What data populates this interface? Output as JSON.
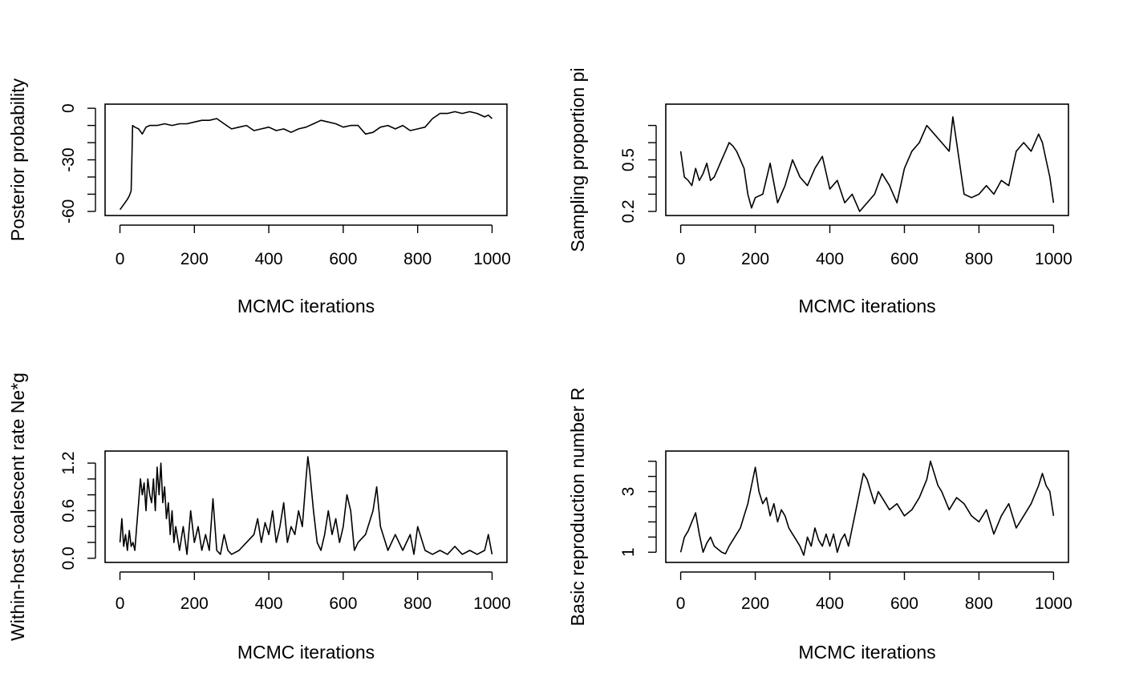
{
  "chart_data": [
    {
      "type": "line",
      "title": "",
      "xlabel": "MCMC iterations",
      "ylabel": "Posterior probability",
      "xlim": [
        0,
        1000
      ],
      "ylim": [
        -60,
        0
      ],
      "xticks": [
        0,
        200,
        400,
        600,
        800,
        1000
      ],
      "yticks_labeled": [
        0,
        -30,
        -60
      ],
      "yticks_minor": [
        -10,
        -20,
        -40,
        -50
      ],
      "grid": false,
      "legend": "none",
      "line_color": "#000000",
      "series": [
        {
          "x": [
            0,
            10,
            20,
            25,
            30,
            32,
            34,
            40,
            50,
            60,
            70,
            80,
            100,
            120,
            140,
            160,
            180,
            200,
            220,
            240,
            260,
            280,
            300,
            320,
            340,
            360,
            380,
            400,
            420,
            440,
            460,
            480,
            500,
            520,
            540,
            560,
            580,
            600,
            620,
            640,
            660,
            680,
            700,
            720,
            740,
            760,
            780,
            800,
            820,
            840,
            860,
            880,
            900,
            920,
            940,
            960,
            980,
            990,
            1000
          ],
          "values": [
            -59,
            -56,
            -53,
            -51,
            -48,
            -30,
            -10,
            -11,
            -12,
            -15,
            -11,
            -10,
            -10,
            -9,
            -10,
            -9,
            -9,
            -8,
            -7,
            -7,
            -6,
            -9,
            -12,
            -11,
            -10,
            -13,
            -12,
            -11,
            -13,
            -12,
            -14,
            -12,
            -11,
            -9,
            -7,
            -8,
            -9,
            -11,
            -10,
            -10,
            -15,
            -14,
            -11,
            -10,
            -12,
            -10,
            -13,
            -12,
            -11,
            -6,
            -3,
            -3,
            -2,
            -3,
            -2,
            -3,
            -5,
            -4,
            -6
          ]
        }
      ]
    },
    {
      "type": "line",
      "title": "",
      "xlabel": "MCMC iterations",
      "ylabel": "Sampling proportion pi",
      "xlim": [
        0,
        1000
      ],
      "ylim": [
        0.2,
        0.8
      ],
      "xticks": [
        0,
        200,
        400,
        600,
        800,
        1000
      ],
      "yticks_labeled": [
        0.2,
        0.5
      ],
      "yticks_minor": [
        0.3,
        0.4,
        0.6,
        0.7
      ],
      "grid": false,
      "legend": "none",
      "line_color": "#000000",
      "series": [
        {
          "x": [
            0,
            10,
            20,
            30,
            40,
            50,
            60,
            70,
            80,
            90,
            100,
            110,
            120,
            130,
            140,
            150,
            160,
            170,
            180,
            190,
            200,
            220,
            240,
            260,
            280,
            300,
            320,
            340,
            360,
            380,
            400,
            420,
            440,
            460,
            480,
            500,
            520,
            540,
            560,
            580,
            600,
            620,
            640,
            660,
            680,
            700,
            720,
            730,
            740,
            760,
            780,
            800,
            820,
            840,
            860,
            880,
            900,
            920,
            940,
            960,
            970,
            980,
            990,
            1000
          ],
          "values": [
            0.55,
            0.4,
            0.38,
            0.35,
            0.45,
            0.38,
            0.42,
            0.48,
            0.38,
            0.4,
            0.45,
            0.5,
            0.55,
            0.6,
            0.58,
            0.55,
            0.5,
            0.45,
            0.3,
            0.22,
            0.28,
            0.3,
            0.48,
            0.25,
            0.35,
            0.5,
            0.4,
            0.35,
            0.45,
            0.52,
            0.33,
            0.38,
            0.25,
            0.3,
            0.2,
            0.25,
            0.3,
            0.42,
            0.35,
            0.25,
            0.45,
            0.55,
            0.6,
            0.7,
            0.65,
            0.6,
            0.55,
            0.75,
            0.6,
            0.3,
            0.28,
            0.3,
            0.35,
            0.3,
            0.38,
            0.35,
            0.55,
            0.6,
            0.55,
            0.65,
            0.6,
            0.5,
            0.4,
            0.25
          ]
        }
      ]
    },
    {
      "type": "line",
      "title": "",
      "xlabel": "MCMC iterations",
      "ylabel": "Within-host coalescent rate Ne*g",
      "xlim": [
        0,
        1000
      ],
      "ylim": [
        0,
        1.3
      ],
      "xticks": [
        0,
        200,
        400,
        600,
        800,
        1000
      ],
      "yticks_labeled": [
        0.0,
        0.6,
        1.2
      ],
      "yticks_minor": [
        0.2,
        0.4,
        0.8,
        1.0
      ],
      "grid": false,
      "legend": "none",
      "line_color": "#000000",
      "series": [
        {
          "x": [
            0,
            5,
            10,
            15,
            20,
            25,
            30,
            35,
            40,
            45,
            50,
            55,
            60,
            65,
            70,
            75,
            80,
            85,
            90,
            95,
            100,
            105,
            110,
            115,
            120,
            125,
            130,
            135,
            140,
            145,
            150,
            160,
            170,
            180,
            190,
            200,
            210,
            220,
            230,
            240,
            250,
            260,
            270,
            280,
            290,
            300,
            320,
            340,
            360,
            370,
            380,
            390,
            400,
            410,
            420,
            430,
            440,
            450,
            460,
            470,
            480,
            490,
            500,
            505,
            510,
            520,
            530,
            540,
            550,
            560,
            570,
            580,
            590,
            600,
            610,
            620,
            630,
            640,
            660,
            680,
            690,
            700,
            720,
            740,
            760,
            780,
            790,
            800,
            820,
            840,
            860,
            880,
            900,
            920,
            940,
            960,
            980,
            990,
            1000
          ],
          "values": [
            0.2,
            0.5,
            0.15,
            0.3,
            0.1,
            0.35,
            0.15,
            0.2,
            0.1,
            0.4,
            0.7,
            1.0,
            0.8,
            0.95,
            0.6,
            1.0,
            0.8,
            0.7,
            1.0,
            0.6,
            1.15,
            0.8,
            1.2,
            0.7,
            0.9,
            0.5,
            0.7,
            0.3,
            0.6,
            0.2,
            0.4,
            0.1,
            0.4,
            0.05,
            0.6,
            0.2,
            0.4,
            0.1,
            0.3,
            0.1,
            0.75,
            0.1,
            0.05,
            0.3,
            0.1,
            0.05,
            0.1,
            0.2,
            0.3,
            0.5,
            0.2,
            0.45,
            0.3,
            0.6,
            0.2,
            0.4,
            0.7,
            0.2,
            0.4,
            0.3,
            0.6,
            0.4,
            1.0,
            1.28,
            1.1,
            0.6,
            0.2,
            0.1,
            0.3,
            0.6,
            0.3,
            0.5,
            0.2,
            0.4,
            0.8,
            0.6,
            0.1,
            0.2,
            0.3,
            0.6,
            0.9,
            0.4,
            0.1,
            0.3,
            0.1,
            0.3,
            0.05,
            0.4,
            0.1,
            0.05,
            0.1,
            0.05,
            0.15,
            0.05,
            0.1,
            0.05,
            0.1,
            0.3,
            0.05
          ]
        }
      ]
    },
    {
      "type": "line",
      "title": "",
      "xlabel": "MCMC iterations",
      "ylabel": "Basic reproduction number R",
      "xlim": [
        0,
        1000
      ],
      "ylim": [
        0.8,
        4.2
      ],
      "xticks": [
        0,
        200,
        400,
        600,
        800,
        1000
      ],
      "yticks_labeled": [
        1.0,
        3.0
      ],
      "yticks_minor": [
        1.5,
        2.0,
        2.5,
        3.5,
        4.0
      ],
      "grid": false,
      "legend": "none",
      "line_color": "#000000",
      "series": [
        {
          "x": [
            0,
            10,
            20,
            30,
            40,
            50,
            60,
            70,
            80,
            90,
            100,
            110,
            120,
            130,
            140,
            150,
            160,
            170,
            180,
            190,
            200,
            210,
            220,
            230,
            240,
            250,
            260,
            270,
            280,
            290,
            300,
            310,
            320,
            330,
            340,
            350,
            360,
            370,
            380,
            390,
            400,
            410,
            420,
            430,
            440,
            450,
            460,
            470,
            480,
            490,
            500,
            510,
            520,
            530,
            540,
            560,
            580,
            600,
            620,
            640,
            660,
            670,
            680,
            690,
            700,
            720,
            740,
            760,
            780,
            800,
            820,
            840,
            860,
            880,
            900,
            920,
            940,
            960,
            970,
            980,
            990,
            1000
          ],
          "values": [
            1.0,
            1.5,
            1.7,
            2.0,
            2.3,
            1.6,
            1.0,
            1.3,
            1.5,
            1.2,
            1.1,
            1.0,
            0.95,
            1.2,
            1.4,
            1.6,
            1.8,
            2.2,
            2.6,
            3.2,
            3.8,
            3.0,
            2.6,
            2.8,
            2.2,
            2.6,
            2.0,
            2.4,
            2.2,
            1.8,
            1.6,
            1.4,
            1.2,
            0.9,
            1.5,
            1.2,
            1.8,
            1.4,
            1.2,
            1.6,
            1.2,
            1.6,
            1.0,
            1.4,
            1.6,
            1.2,
            1.8,
            2.4,
            3.0,
            3.6,
            3.4,
            3.0,
            2.6,
            3.0,
            2.8,
            2.4,
            2.6,
            2.2,
            2.4,
            2.8,
            3.4,
            4.0,
            3.6,
            3.2,
            3.0,
            2.4,
            2.8,
            2.6,
            2.2,
            2.0,
            2.4,
            1.6,
            2.2,
            2.6,
            1.8,
            2.2,
            2.6,
            3.2,
            3.6,
            3.2,
            3.0,
            2.2
          ]
        }
      ]
    }
  ]
}
